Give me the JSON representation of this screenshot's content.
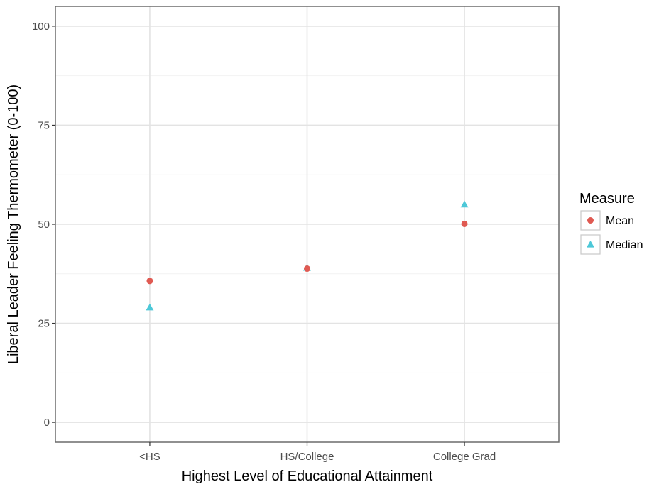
{
  "chart_data": {
    "type": "scatter",
    "xlabel": "Highest Level of Educational Attainment",
    "ylabel": "Liberal Leader Feeling Thermometer (0-100)",
    "categories": [
      "<HS",
      "HS/College",
      "College Grad"
    ],
    "ylim": [
      -5,
      105
    ],
    "yticks": [
      0,
      25,
      50,
      75,
      100
    ],
    "grid": true,
    "legend": {
      "title": "Measure",
      "placement": "right"
    },
    "series": [
      {
        "name": "Mean",
        "shape": "circle",
        "color": "#e05a52",
        "values": [
          35.7,
          38.8,
          50.1
        ]
      },
      {
        "name": "Median",
        "shape": "triangle",
        "color": "#4dc8d8",
        "values": [
          29,
          39,
          55
        ]
      }
    ]
  }
}
